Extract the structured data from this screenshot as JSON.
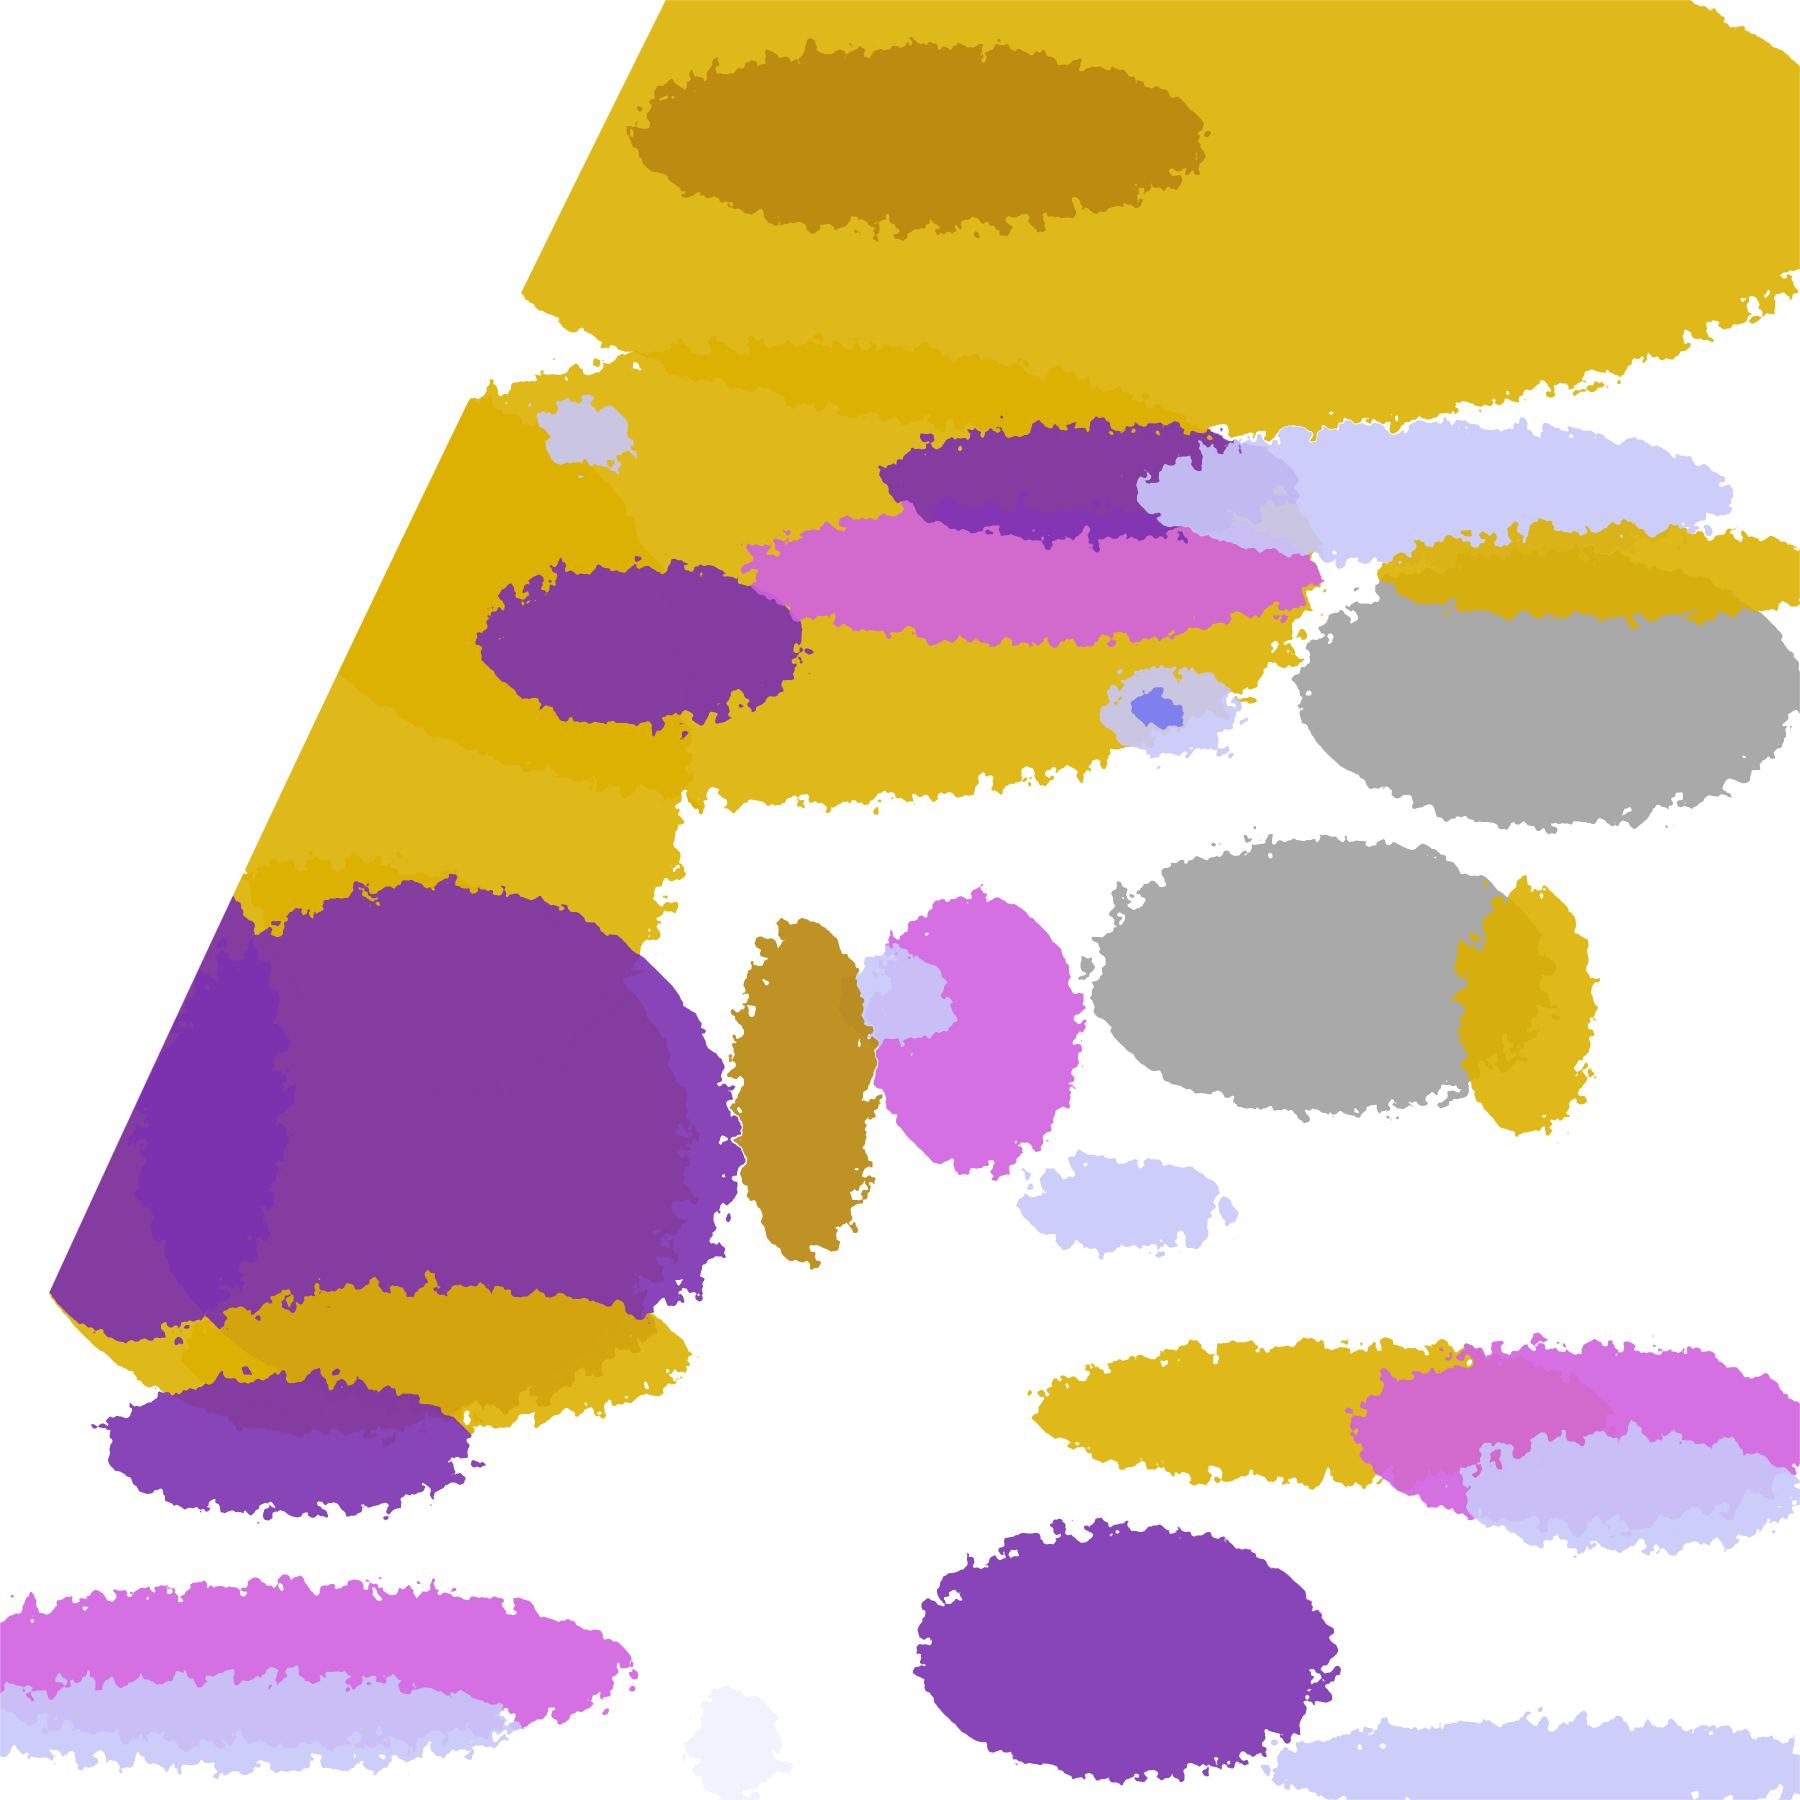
{
  "map": {
    "type": "satellite-cloud-classification",
    "palette": {
      "background": "#ffffff",
      "gold": "#dcb000",
      "dark_gold": "#b8860b",
      "purple": "#7b30b0",
      "magenta": "#d060e0",
      "lavender": "#c8c8f8",
      "blue": "#7878f0",
      "gray": "#a0a0a0",
      "pale": "#f0f0ff"
    }
  }
}
